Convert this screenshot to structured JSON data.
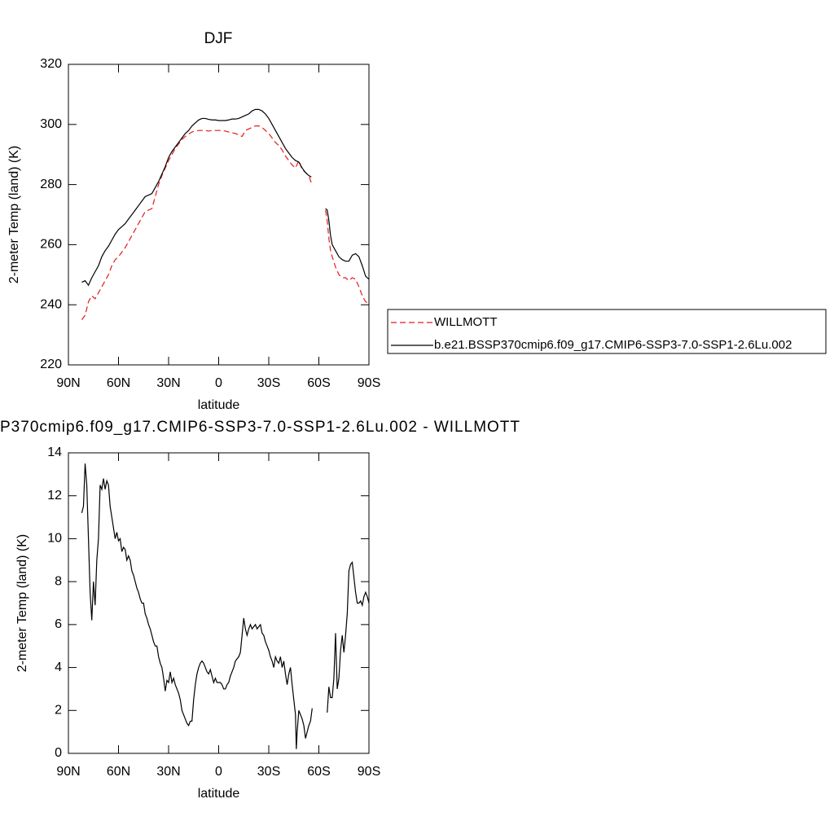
{
  "chart_data": [
    {
      "type": "line",
      "title": "DJF",
      "xlabel": "latitude",
      "ylabel": "2-meter Temp (land) (K)",
      "xlim": [
        90,
        -90
      ],
      "ylim": [
        220,
        320
      ],
      "xticks": [
        {
          "value": 90,
          "label": "90N"
        },
        {
          "value": 60,
          "label": "60N"
        },
        {
          "value": 30,
          "label": "30N"
        },
        0,
        {
          "value": -30,
          "label": "30S"
        },
        {
          "value": -60,
          "label": "60S"
        },
        {
          "value": -90,
          "label": "90S"
        }
      ],
      "yticks": [
        220,
        240,
        260,
        280,
        300,
        320
      ],
      "legend": "right",
      "x": [
        82,
        80,
        78,
        76,
        74,
        72,
        70,
        68,
        66,
        64,
        62,
        60,
        58,
        56,
        54,
        52,
        50,
        48,
        46,
        44,
        42,
        40,
        38,
        36,
        34,
        32,
        30,
        28,
        26,
        24,
        22,
        20,
        18,
        16,
        14,
        12,
        10,
        8,
        6,
        4,
        2,
        0,
        -2,
        -4,
        -6,
        -8,
        -10,
        -12,
        -14,
        -16,
        -18,
        -20,
        -22,
        -24,
        -26,
        -28,
        -30,
        -32,
        -34,
        -36,
        -38,
        -40,
        -42,
        -44,
        -46,
        -48,
        -50,
        -52,
        -54,
        -55.5,
        -60,
        -64,
        -65,
        -66,
        -67,
        -68,
        -70,
        -72,
        -74,
        -76,
        -78,
        -80,
        -82,
        -84,
        -86,
        -88,
        -90
      ],
      "series": [
        {
          "name": "WILLMOTT",
          "color": "#e41a1c",
          "linestyle": "dashed",
          "values": [
            235,
            236.5,
            241,
            243,
            242,
            244,
            246,
            248,
            250,
            253,
            255,
            256,
            257.5,
            259,
            261,
            263,
            265,
            267,
            269,
            271,
            271.5,
            272,
            276,
            280,
            283,
            285.5,
            288,
            290,
            292,
            293.5,
            295,
            296,
            296.8,
            297.5,
            297.8,
            298,
            298,
            298,
            297.8,
            298,
            298,
            298,
            298,
            297.8,
            297.5,
            297.2,
            297,
            296.5,
            296,
            298,
            298.5,
            299,
            299.5,
            299.5,
            299,
            298,
            297,
            295.5,
            294,
            293,
            291.5,
            289.5,
            288,
            286.5,
            285.5,
            288,
            285,
            284,
            283,
            280.5,
            null,
            271.5,
            268,
            262,
            258,
            256,
            252.5,
            250,
            249,
            249,
            248,
            249,
            248.5,
            246,
            243,
            241,
            240.5
          ]
        },
        {
          "name": "b.e21.BSSP370cmip6.f09_g17.CMIP6-SSP3-7.0-SSP1-2.6Lu.002",
          "color": "#000000",
          "linestyle": "solid",
          "values": [
            247.5,
            248,
            246.5,
            249,
            251,
            253,
            256,
            258,
            259.5,
            261.5,
            263.5,
            265,
            266,
            267,
            268.5,
            270,
            271.5,
            273,
            274.5,
            276,
            276.5,
            277,
            279,
            281,
            283.5,
            286,
            289,
            291,
            292.5,
            294,
            295.5,
            297,
            298,
            299.5,
            300.5,
            301.5,
            302,
            302,
            301.7,
            301.5,
            301.5,
            301.3,
            301.3,
            301.3,
            301.5,
            301.8,
            301.8,
            302,
            302.5,
            303,
            303.5,
            304.5,
            305,
            305,
            304.5,
            303.5,
            302,
            300,
            298,
            296,
            294,
            292,
            290.5,
            289,
            288,
            287.5,
            285.5,
            284,
            283,
            282.5,
            null,
            272,
            271.5,
            268,
            263,
            260,
            258,
            256,
            255,
            254.5,
            254.5,
            256.5,
            257,
            256,
            253,
            249.5,
            248.5
          ]
        }
      ]
    },
    {
      "type": "line",
      "title": "P370cmip6.f09_g17.CMIP6-SSP3-7.0-SSP1-2.6Lu.002 - WILLMOTT",
      "xlabel": "latitude",
      "ylabel": "2-meter Temp (land) (K)",
      "xlim": [
        90,
        -90
      ],
      "ylim": [
        0,
        14
      ],
      "xticks": [
        {
          "value": 90,
          "label": "90N"
        },
        {
          "value": 60,
          "label": "60N"
        },
        {
          "value": 30,
          "label": "30N"
        },
        0,
        {
          "value": -30,
          "label": "30S"
        },
        {
          "value": -60,
          "label": "60S"
        },
        {
          "value": -90,
          "label": "90S"
        }
      ],
      "yticks": [
        0,
        2,
        4,
        6,
        8,
        10,
        12,
        14
      ],
      "color": "#000000",
      "x": [
        82,
        81,
        80,
        79,
        78,
        77,
        76,
        75,
        74,
        73,
        72,
        71,
        70,
        69,
        68,
        67,
        66,
        65,
        64,
        63,
        62,
        61,
        60,
        59,
        58,
        57,
        56,
        55,
        54,
        53,
        52,
        51,
        50,
        49,
        48,
        47,
        46,
        45,
        44,
        43,
        42,
        41,
        40,
        39,
        38,
        37,
        36,
        35,
        34,
        33,
        32,
        31,
        30,
        29,
        28,
        27,
        26,
        25,
        24,
        23,
        22,
        21,
        20,
        19,
        18,
        17,
        16,
        15,
        14,
        13,
        12,
        11,
        10,
        9,
        8,
        7,
        6,
        5,
        4,
        3,
        2,
        1,
        0,
        -1,
        -2,
        -3,
        -4,
        -5,
        -6,
        -7,
        -8,
        -9,
        -10,
        -11,
        -12,
        -13,
        -14,
        -15,
        -16,
        -17,
        -18,
        -19,
        -20,
        -21,
        -22,
        -23,
        -24,
        -25,
        -26,
        -27,
        -28,
        -29,
        -30,
        -31,
        -32,
        -33,
        -34,
        -35,
        -36,
        -37,
        -38,
        -39,
        -40,
        -41,
        -42,
        -43,
        -44,
        -45,
        -46,
        -46.5,
        -47,
        -48,
        -49,
        -50,
        -51,
        -52,
        -53,
        -54,
        -55,
        -56,
        -60,
        -65,
        -66,
        -67,
        -68,
        -69,
        -70,
        -71,
        -72,
        -73,
        -74,
        -75,
        -76,
        -77,
        -78,
        -79,
        -80,
        -81,
        -82,
        -83,
        -84,
        -85,
        -86,
        -87,
        -88,
        -89,
        -90
      ],
      "values": [
        11.2,
        11.5,
        13.5,
        12.5,
        10,
        7.5,
        6.2,
        8,
        6.9,
        9,
        10,
        12.5,
        12.3,
        12.8,
        12.3,
        12.7,
        12.5,
        11.5,
        11,
        10.5,
        10,
        10.3,
        9.9,
        10,
        9.4,
        9.6,
        9.5,
        9,
        9.2,
        9,
        8.5,
        8.3,
        8,
        7.7,
        7.5,
        7.2,
        7,
        7,
        6.5,
        6.3,
        6,
        5.8,
        5.5,
        5.2,
        5,
        5,
        4.5,
        4.2,
        4,
        3.5,
        2.9,
        3.4,
        3.3,
        3.8,
        3.3,
        3.5,
        3.2,
        3,
        2.8,
        2.5,
        2,
        1.8,
        1.6,
        1.4,
        1.3,
        1.5,
        1.5,
        2.5,
        3.2,
        3.7,
        4,
        4.2,
        4.3,
        4.2,
        4,
        3.8,
        3.7,
        3.9,
        3.6,
        3.3,
        3.5,
        3.3,
        3.3,
        3.3,
        3.2,
        3,
        3,
        3.2,
        3.3,
        3.6,
        3.8,
        4,
        4.3,
        4.4,
        4.5,
        4.7,
        5.5,
        6.3,
        5.8,
        5.5,
        5.8,
        6,
        5.8,
        5.9,
        6,
        5.8,
        5.9,
        6,
        5.6,
        5.5,
        5.2,
        5,
        4.8,
        4.5,
        4.3,
        4,
        4.5,
        4.3,
        4.2,
        4.5,
        4,
        4.3,
        3.7,
        3.2,
        3.7,
        4,
        3.2,
        2.5,
        1.8,
        0.2,
        1,
        2,
        1.8,
        1.6,
        1.3,
        0.7,
        1,
        1.3,
        1.5,
        2.1,
        null,
        1.9,
        3.1,
        2.6,
        2.6,
        3.5,
        5.6,
        3,
        3.5,
        4.8,
        5.5,
        4.7,
        5.5,
        6.5,
        8.5,
        8.8,
        8.9,
        8.2,
        7.5,
        7,
        7,
        7.1,
        6.9,
        7.3,
        7.5,
        7.3,
        7
      ]
    }
  ]
}
